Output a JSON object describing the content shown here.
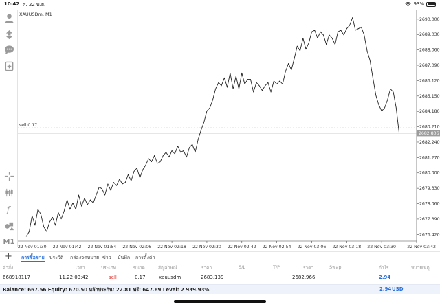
{
  "status_bar": {
    "time": "10:42",
    "date": "ศ. 22 พ.ย.",
    "battery": "93%",
    "battery_level": 0.93
  },
  "toolbar": {
    "icons": [
      "account-icon",
      "trade-arrows-icon",
      "chat-icon",
      "new-order-icon",
      "crosshair-icon",
      "indicators-icon",
      "function-icon",
      "objects-icon"
    ],
    "timeframe": "M1"
  },
  "chart": {
    "symbol": "XAUUSDm, M1",
    "sell_label": "sell 0.17",
    "sell_price": 2683.139,
    "current_price_label": "2682.806",
    "current_price": 2682.806,
    "y_ticks": [
      "2690.000",
      "2689.030",
      "2688.060",
      "2687.090",
      "2686.120",
      "2685.150",
      "2684.180",
      "2683.210",
      "2682.240",
      "2681.270",
      "2680.300",
      "2679.330",
      "2678.360",
      "2677.390",
      "2676.420"
    ],
    "x_ticks": [
      "22 Nov 01:30",
      "22 Nov 01:42",
      "22 Nov 01:54",
      "22 Nov 02:06",
      "22 Nov 02:18",
      "22 Nov 02:30",
      "22 Nov 02:42",
      "22 Nov 02:54",
      "22 Nov 03:06",
      "22 Nov 03:18",
      "22 Nov 03:30",
      "22 Nov 03:42"
    ]
  },
  "chart_data": {
    "type": "line",
    "title": "XAUUSDm, M1",
    "x": [
      "01:28",
      "01:29",
      "01:30",
      "01:31",
      "01:32",
      "01:33",
      "01:34",
      "01:35",
      "01:36",
      "01:37",
      "01:38",
      "01:39",
      "01:40",
      "01:41",
      "01:42",
      "01:43",
      "01:44",
      "01:45",
      "01:46",
      "01:47",
      "01:48",
      "01:49",
      "01:50",
      "01:51",
      "01:52",
      "01:53",
      "01:54",
      "01:55",
      "01:56",
      "01:57",
      "01:58",
      "01:59",
      "02:00",
      "02:01",
      "02:02",
      "02:03",
      "02:04",
      "02:05",
      "02:06",
      "02:07",
      "02:08",
      "02:09",
      "02:10",
      "02:11",
      "02:12",
      "02:13",
      "02:14",
      "02:15",
      "02:16",
      "02:17",
      "02:18",
      "02:19",
      "02:20",
      "02:21",
      "02:22",
      "02:23",
      "02:24",
      "02:25",
      "02:26",
      "02:27",
      "02:28",
      "02:29",
      "02:30",
      "02:31",
      "02:32",
      "02:33",
      "02:34",
      "02:35",
      "02:36",
      "02:37",
      "02:38",
      "02:39",
      "02:40",
      "02:41",
      "02:42",
      "02:43",
      "02:44",
      "02:45",
      "02:46",
      "02:47",
      "02:48",
      "02:49",
      "02:50",
      "02:51",
      "02:52",
      "02:53",
      "02:54",
      "02:55",
      "02:56",
      "02:57",
      "02:58",
      "02:59",
      "03:00",
      "03:01",
      "03:02",
      "03:03",
      "03:04",
      "03:05",
      "03:06",
      "03:07",
      "03:08",
      "03:09",
      "03:10",
      "03:11",
      "03:12",
      "03:13",
      "03:14",
      "03:15",
      "03:16",
      "03:17",
      "03:18",
      "03:19",
      "03:20",
      "03:21",
      "03:22",
      "03:23",
      "03:24",
      "03:25",
      "03:26",
      "03:27",
      "03:28",
      "03:29",
      "03:30",
      "03:31",
      "03:32",
      "03:33",
      "03:34",
      "03:35",
      "03:36"
    ],
    "series": [
      {
        "values": [
          2676.3,
          2676.6,
          2677.6,
          2677.0,
          2678.0,
          2677.7,
          2676.9,
          2676.6,
          2677.2,
          2677.5,
          2677.0,
          2677.8,
          2677.4,
          2677.9,
          2678.6,
          2678.0,
          2678.4,
          2678.0,
          2678.9,
          2678.2,
          2678.7,
          2678.3,
          2678.6,
          2678.4,
          2678.9,
          2679.4,
          2679.3,
          2678.9,
          2679.6,
          2679.2,
          2679.7,
          2679.5,
          2679.9,
          2679.6,
          2679.7,
          2680.2,
          2679.8,
          2680.4,
          2680.6,
          2680.0,
          2680.5,
          2680.8,
          2681.2,
          2681.0,
          2681.4,
          2680.9,
          2681.0,
          2681.4,
          2681.6,
          2681.3,
          2681.7,
          2681.5,
          2682.0,
          2681.6,
          2681.7,
          2681.3,
          2681.9,
          2682.1,
          2681.6,
          2682.4,
          2683.0,
          2683.5,
          2684.2,
          2684.4,
          2684.9,
          2685.6,
          2686.0,
          2685.8,
          2686.3,
          2685.7,
          2686.6,
          2685.6,
          2686.4,
          2685.6,
          2686.6,
          2685.9,
          2686.2,
          2686.2,
          2685.4,
          2686.0,
          2685.8,
          2685.5,
          2685.8,
          2686.0,
          2685.4,
          2686.1,
          2685.9,
          2686.1,
          2685.9,
          2686.7,
          2687.2,
          2686.8,
          2687.5,
          2688.3,
          2688.0,
          2688.8,
          2688.1,
          2688.5,
          2689.2,
          2689.3,
          2688.8,
          2689.2,
          2689.0,
          2688.4,
          2689.0,
          2688.8,
          2688.4,
          2689.2,
          2689.3,
          2689.0,
          2689.4,
          2689.6,
          2690.1,
          2689.3,
          2689.4,
          2689.5,
          2689.0,
          2688.0,
          2687.4,
          2686.3,
          2685.2,
          2684.6,
          2684.2,
          2684.4,
          2684.9,
          2685.6,
          2685.4,
          2684.4,
          2682.8
        ]
      }
    ],
    "ylim": [
      2676.0,
      2690.6
    ],
    "grid": false
  },
  "tabs": {
    "items": [
      "การซื้อขาย",
      "ประวัติ",
      "กล่องจดหมาย",
      "ข่าว",
      "บันทึก",
      "การตั้งค่า"
    ],
    "active_index": 0
  },
  "positions_table": {
    "headers": [
      "คำสั่ง",
      "เวลา",
      "ประเภท",
      "ขนาด",
      "สัญลักษณ์",
      "ราคา",
      "S/L",
      "T/P",
      "ราคา",
      "Swap",
      "กำไร",
      "หมายเหตุ"
    ],
    "rows": [
      {
        "order": "668918117",
        "time": "11.22 03:42",
        "type": "sell",
        "volume": "0.17",
        "symbol": "xauusdm",
        "open_price": "2683.139",
        "sl": "",
        "tp": "",
        "current_price": "2682.966",
        "swap": "",
        "profit": "2.94",
        "comment": ""
      }
    ]
  },
  "balance_bar": {
    "text": "Balance: 667.56 Equity: 670.50 หลักประกัน: 22.81 ฟรี: 647.69 Level: 2 939.93%",
    "profit": "2.94",
    "currency": "USD"
  },
  "colors": {
    "accent": "#2a6fdb",
    "sell": "#e0312c",
    "line": "#222222"
  }
}
